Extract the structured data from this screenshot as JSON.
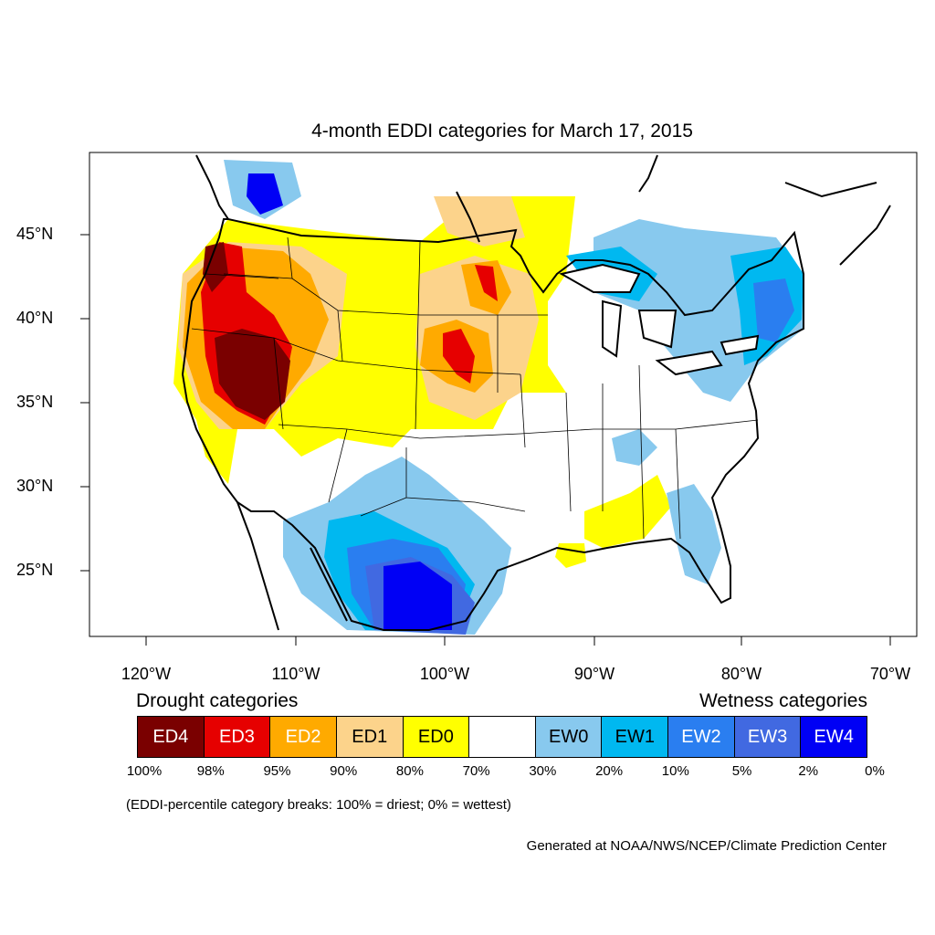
{
  "title": "4-month EDDI categories for March 17, 2015",
  "map": {
    "lat_ticks": [
      "45°N",
      "40°N",
      "35°N",
      "30°N",
      "25°N"
    ],
    "lon_ticks": [
      "120°W",
      "110°W",
      "100°W",
      "90°W",
      "80°W",
      "70°W"
    ],
    "colors": {
      "ED4": "#7a0000",
      "ED3": "#e60000",
      "ED2": "#ffaa00",
      "ED1": "#fcd38b",
      "ED0": "#ffff00",
      "EW0": "#88c9ee",
      "EW1": "#00b8f0",
      "EW2": "#2a7ef0",
      "EW3": "#4169e1",
      "EW4": "#0000f5"
    }
  },
  "legend": {
    "drought_label": "Drought categories",
    "wetness_label": "Wetness categories",
    "categories": [
      {
        "label": "ED4",
        "color": "#7a0000",
        "text_color": "#ffffff"
      },
      {
        "label": "ED3",
        "color": "#e60000",
        "text_color": "#ffffff"
      },
      {
        "label": "ED2",
        "color": "#ffaa00",
        "text_color": "#ffffff"
      },
      {
        "label": "ED1",
        "color": "#fcd38b",
        "text_color": "#000000"
      },
      {
        "label": "ED0",
        "color": "#ffff00",
        "text_color": "#000000"
      },
      {
        "label": "",
        "color": "#ffffff",
        "text_color": "#000000"
      },
      {
        "label": "EW0",
        "color": "#88c9ee",
        "text_color": "#000000"
      },
      {
        "label": "EW1",
        "color": "#00b8f0",
        "text_color": "#000000"
      },
      {
        "label": "EW2",
        "color": "#2a7ef0",
        "text_color": "#ffffff"
      },
      {
        "label": "EW3",
        "color": "#4169e1",
        "text_color": "#ffffff"
      },
      {
        "label": "EW4",
        "color": "#0000f5",
        "text_color": "#ffffff"
      }
    ],
    "breaks": [
      "100%",
      "98%",
      "95%",
      "90%",
      "80%",
      "70%",
      "30%",
      "20%",
      "10%",
      "5%",
      "2%",
      "0%"
    ],
    "note": "(EDDI-percentile category breaks: 100% = driest; 0% = wettest)"
  },
  "credit": "Generated at NOAA/NWS/NCEP/Climate Prediction Center"
}
